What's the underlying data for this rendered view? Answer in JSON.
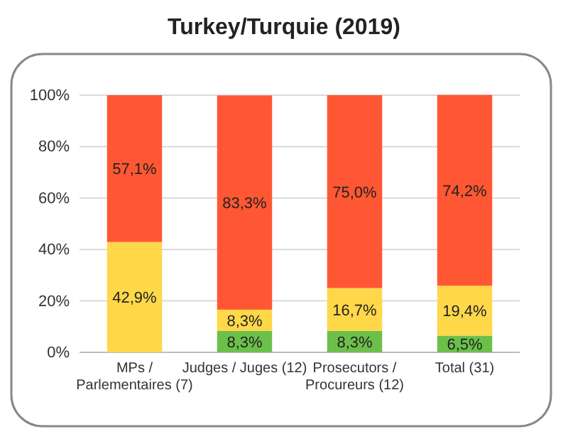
{
  "chart_data": {
    "type": "bar",
    "title": "Turkey/Turquie (2019)",
    "stacked": true,
    "grid": "y",
    "categories": [
      "MPs /\nParlementaires (7)",
      "Judges / Juges (12)",
      "Prosecutors  /\nProcureurs (12)",
      "Total (31)"
    ],
    "ylim": [
      0,
      100
    ],
    "yticks": [
      {
        "value": 0,
        "label": "0%"
      },
      {
        "value": 20,
        "label": "20%"
      },
      {
        "value": 40,
        "label": "40%"
      },
      {
        "value": 60,
        "label": "60%"
      },
      {
        "value": 80,
        "label": "80%"
      },
      {
        "value": 100,
        "label": "100%"
      }
    ],
    "series": [
      {
        "color": "#6cc04a",
        "values": [
          null,
          8.3,
          8.3,
          6.5
        ],
        "value_labels": [
          null,
          "8,3%",
          "8,3%",
          "6,5%"
        ]
      },
      {
        "color": "#ffd84a",
        "values": [
          42.9,
          8.3,
          16.7,
          19.4
        ],
        "value_labels": [
          "42,9%",
          "8,3%",
          "16,7%",
          "19,4%"
        ]
      },
      {
        "color": "#ff5733",
        "values": [
          57.1,
          83.3,
          75.0,
          74.2
        ],
        "value_labels": [
          "57,1%",
          "83,3%",
          "75,0%",
          "74,2%"
        ]
      }
    ]
  }
}
